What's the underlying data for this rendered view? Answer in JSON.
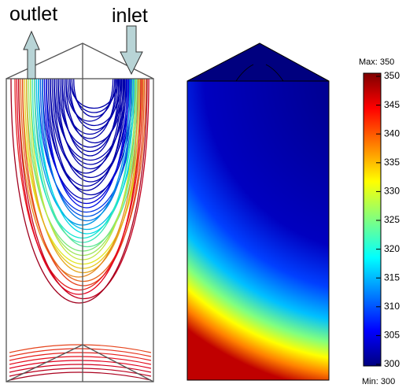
{
  "labels": {
    "left": "outlet",
    "right": "inlet"
  },
  "colorbar": {
    "max_label": "Max: 350",
    "min_label": "Min: 300",
    "range": [
      300,
      350
    ],
    "ticks": [
      300,
      305,
      310,
      315,
      320,
      325,
      330,
      335,
      340,
      345,
      350
    ]
  }
}
